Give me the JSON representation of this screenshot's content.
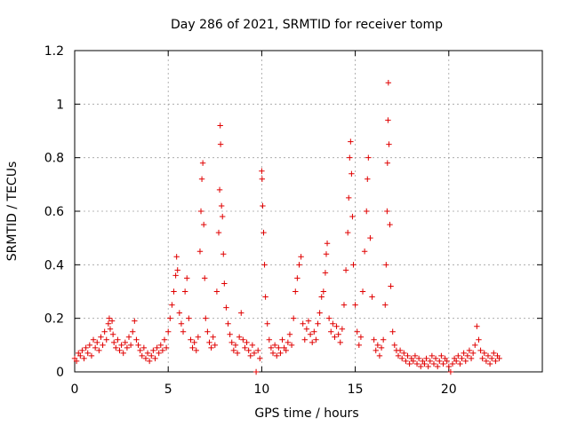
{
  "chart_data": {
    "type": "scatter",
    "title": "Day 286 of 2021, SRMTID for receiver tomp",
    "xlabel": "GPS time / hours",
    "ylabel": "SRMTID / TECUs",
    "xlim": [
      0,
      25
    ],
    "ylim": [
      0,
      1.2
    ],
    "xticks": [
      0,
      5,
      10,
      15,
      20
    ],
    "xtick_labels": [
      "0",
      "5",
      "10",
      "15",
      "20"
    ],
    "yticks": [
      0,
      0.2,
      0.4,
      0.6,
      0.8,
      1.0,
      1.2
    ],
    "ytick_labels": [
      "0",
      "0.2",
      "0.4",
      "0.6",
      "0.8",
      "1",
      "1.2"
    ],
    "grid": true,
    "marker": "plus",
    "color": "#e00000",
    "series": [
      {
        "name": "SRMTID",
        "points": [
          [
            0.0,
            0.05
          ],
          [
            0.1,
            0.04
          ],
          [
            0.2,
            0.07
          ],
          [
            0.3,
            0.06
          ],
          [
            0.4,
            0.08
          ],
          [
            0.5,
            0.05
          ],
          [
            0.6,
            0.09
          ],
          [
            0.7,
            0.07
          ],
          [
            0.8,
            0.1
          ],
          [
            0.9,
            0.06
          ],
          [
            1.0,
            0.12
          ],
          [
            1.1,
            0.09
          ],
          [
            1.2,
            0.11
          ],
          [
            1.3,
            0.08
          ],
          [
            1.4,
            0.13
          ],
          [
            1.5,
            0.1
          ],
          [
            1.6,
            0.15
          ],
          [
            1.7,
            0.12
          ],
          [
            1.8,
            0.18
          ],
          [
            1.85,
            0.2
          ],
          [
            1.9,
            0.16
          ],
          [
            2.0,
            0.19
          ],
          [
            2.05,
            0.14
          ],
          [
            2.1,
            0.11
          ],
          [
            2.2,
            0.09
          ],
          [
            2.3,
            0.12
          ],
          [
            2.4,
            0.08
          ],
          [
            2.5,
            0.1
          ],
          [
            2.6,
            0.07
          ],
          [
            2.7,
            0.11
          ],
          [
            2.8,
            0.09
          ],
          [
            2.9,
            0.13
          ],
          [
            3.0,
            0.1
          ],
          [
            3.1,
            0.15
          ],
          [
            3.2,
            0.19
          ],
          [
            3.3,
            0.12
          ],
          [
            3.4,
            0.1
          ],
          [
            3.5,
            0.08
          ],
          [
            3.6,
            0.06
          ],
          [
            3.7,
            0.09
          ],
          [
            3.8,
            0.05
          ],
          [
            3.9,
            0.07
          ],
          [
            4.0,
            0.04
          ],
          [
            4.1,
            0.06
          ],
          [
            4.2,
            0.08
          ],
          [
            4.3,
            0.05
          ],
          [
            4.4,
            0.09
          ],
          [
            4.5,
            0.07
          ],
          [
            4.6,
            0.1
          ],
          [
            4.7,
            0.08
          ],
          [
            4.8,
            0.12
          ],
          [
            4.9,
            0.09
          ],
          [
            5.0,
            0.15
          ],
          [
            5.1,
            0.2
          ],
          [
            5.2,
            0.25
          ],
          [
            5.3,
            0.3
          ],
          [
            5.4,
            0.36
          ],
          [
            5.45,
            0.43
          ],
          [
            5.5,
            0.38
          ],
          [
            5.6,
            0.22
          ],
          [
            5.7,
            0.18
          ],
          [
            5.8,
            0.15
          ],
          [
            5.9,
            0.3
          ],
          [
            6.0,
            0.35
          ],
          [
            6.1,
            0.2
          ],
          [
            6.2,
            0.12
          ],
          [
            6.3,
            0.09
          ],
          [
            6.4,
            0.11
          ],
          [
            6.5,
            0.08
          ],
          [
            6.6,
            0.13
          ],
          [
            6.7,
            0.45
          ],
          [
            6.75,
            0.6
          ],
          [
            6.8,
            0.72
          ],
          [
            6.85,
            0.78
          ],
          [
            6.9,
            0.55
          ],
          [
            6.95,
            0.35
          ],
          [
            7.0,
            0.2
          ],
          [
            7.1,
            0.15
          ],
          [
            7.2,
            0.11
          ],
          [
            7.3,
            0.09
          ],
          [
            7.4,
            0.13
          ],
          [
            7.5,
            0.1
          ],
          [
            7.6,
            0.3
          ],
          [
            7.7,
            0.52
          ],
          [
            7.75,
            0.68
          ],
          [
            7.78,
            0.92
          ],
          [
            7.8,
            0.85
          ],
          [
            7.85,
            0.62
          ],
          [
            7.9,
            0.58
          ],
          [
            7.95,
            0.44
          ],
          [
            8.0,
            0.33
          ],
          [
            8.1,
            0.24
          ],
          [
            8.2,
            0.18
          ],
          [
            8.3,
            0.14
          ],
          [
            8.4,
            0.11
          ],
          [
            8.5,
            0.08
          ],
          [
            8.6,
            0.1
          ],
          [
            8.7,
            0.07
          ],
          [
            8.8,
            0.13
          ],
          [
            8.9,
            0.22
          ],
          [
            9.0,
            0.12
          ],
          [
            9.1,
            0.09
          ],
          [
            9.2,
            0.11
          ],
          [
            9.3,
            0.08
          ],
          [
            9.4,
            0.06
          ],
          [
            9.5,
            0.1
          ],
          [
            9.6,
            0.07
          ],
          [
            9.7,
            0.0
          ],
          [
            9.8,
            0.08
          ],
          [
            9.9,
            0.05
          ],
          [
            10.0,
            0.75
          ],
          [
            10.02,
            0.72
          ],
          [
            10.05,
            0.62
          ],
          [
            10.1,
            0.52
          ],
          [
            10.15,
            0.4
          ],
          [
            10.2,
            0.28
          ],
          [
            10.3,
            0.18
          ],
          [
            10.4,
            0.12
          ],
          [
            10.5,
            0.09
          ],
          [
            10.6,
            0.07
          ],
          [
            10.7,
            0.1
          ],
          [
            10.8,
            0.06
          ],
          [
            10.9,
            0.09
          ],
          [
            11.0,
            0.07
          ],
          [
            11.1,
            0.12
          ],
          [
            11.2,
            0.09
          ],
          [
            11.3,
            0.08
          ],
          [
            11.4,
            0.11
          ],
          [
            11.5,
            0.14
          ],
          [
            11.6,
            0.1
          ],
          [
            11.7,
            0.2
          ],
          [
            11.8,
            0.3
          ],
          [
            11.9,
            0.35
          ],
          [
            12.0,
            0.4
          ],
          [
            12.1,
            0.43
          ],
          [
            12.2,
            0.18
          ],
          [
            12.3,
            0.12
          ],
          [
            12.4,
            0.16
          ],
          [
            12.5,
            0.19
          ],
          [
            12.6,
            0.14
          ],
          [
            12.7,
            0.11
          ],
          [
            12.8,
            0.15
          ],
          [
            12.9,
            0.12
          ],
          [
            13.0,
            0.18
          ],
          [
            13.1,
            0.22
          ],
          [
            13.2,
            0.28
          ],
          [
            13.3,
            0.3
          ],
          [
            13.4,
            0.37
          ],
          [
            13.45,
            0.44
          ],
          [
            13.5,
            0.48
          ],
          [
            13.6,
            0.2
          ],
          [
            13.7,
            0.15
          ],
          [
            13.8,
            0.18
          ],
          [
            13.9,
            0.13
          ],
          [
            14.0,
            0.17
          ],
          [
            14.1,
            0.14
          ],
          [
            14.2,
            0.11
          ],
          [
            14.3,
            0.16
          ],
          [
            14.4,
            0.25
          ],
          [
            14.5,
            0.38
          ],
          [
            14.6,
            0.52
          ],
          [
            14.65,
            0.65
          ],
          [
            14.7,
            0.8
          ],
          [
            14.75,
            0.86
          ],
          [
            14.8,
            0.74
          ],
          [
            14.85,
            0.58
          ],
          [
            14.9,
            0.4
          ],
          [
            15.0,
            0.25
          ],
          [
            15.1,
            0.15
          ],
          [
            15.2,
            0.1
          ],
          [
            15.3,
            0.13
          ],
          [
            15.4,
            0.3
          ],
          [
            15.5,
            0.45
          ],
          [
            15.6,
            0.6
          ],
          [
            15.65,
            0.72
          ],
          [
            15.7,
            0.8
          ],
          [
            15.8,
            0.5
          ],
          [
            15.9,
            0.28
          ],
          [
            16.0,
            0.12
          ],
          [
            16.1,
            0.08
          ],
          [
            16.2,
            0.1
          ],
          [
            16.3,
            0.06
          ],
          [
            16.4,
            0.09
          ],
          [
            16.5,
            0.12
          ],
          [
            16.6,
            0.25
          ],
          [
            16.65,
            0.4
          ],
          [
            16.7,
            0.6
          ],
          [
            16.72,
            0.78
          ],
          [
            16.75,
            0.94
          ],
          [
            16.77,
            1.08
          ],
          [
            16.8,
            0.85
          ],
          [
            16.85,
            0.55
          ],
          [
            16.9,
            0.32
          ],
          [
            17.0,
            0.15
          ],
          [
            17.1,
            0.1
          ],
          [
            17.2,
            0.08
          ],
          [
            17.3,
            0.06
          ],
          [
            17.4,
            0.08
          ],
          [
            17.5,
            0.05
          ],
          [
            17.6,
            0.07
          ],
          [
            17.7,
            0.04
          ],
          [
            17.8,
            0.06
          ],
          [
            17.9,
            0.03
          ],
          [
            18.0,
            0.05
          ],
          [
            18.1,
            0.04
          ],
          [
            18.2,
            0.06
          ],
          [
            18.3,
            0.03
          ],
          [
            18.4,
            0.05
          ],
          [
            18.5,
            0.02
          ],
          [
            18.6,
            0.04
          ],
          [
            18.7,
            0.03
          ],
          [
            18.8,
            0.05
          ],
          [
            18.9,
            0.02
          ],
          [
            19.0,
            0.04
          ],
          [
            19.1,
            0.06
          ],
          [
            19.2,
            0.03
          ],
          [
            19.3,
            0.05
          ],
          [
            19.4,
            0.02
          ],
          [
            19.5,
            0.04
          ],
          [
            19.6,
            0.06
          ],
          [
            19.7,
            0.03
          ],
          [
            19.8,
            0.05
          ],
          [
            19.9,
            0.04
          ],
          [
            20.0,
            0.02
          ],
          [
            20.1,
            0.0
          ],
          [
            20.2,
            0.03
          ],
          [
            20.3,
            0.05
          ],
          [
            20.4,
            0.04
          ],
          [
            20.5,
            0.06
          ],
          [
            20.6,
            0.03
          ],
          [
            20.7,
            0.05
          ],
          [
            20.8,
            0.07
          ],
          [
            20.9,
            0.04
          ],
          [
            21.0,
            0.06
          ],
          [
            21.1,
            0.08
          ],
          [
            21.2,
            0.05
          ],
          [
            21.3,
            0.07
          ],
          [
            21.4,
            0.1
          ],
          [
            21.5,
            0.17
          ],
          [
            21.6,
            0.12
          ],
          [
            21.7,
            0.08
          ],
          [
            21.8,
            0.05
          ],
          [
            21.9,
            0.07
          ],
          [
            22.0,
            0.04
          ],
          [
            22.1,
            0.06
          ],
          [
            22.2,
            0.03
          ],
          [
            22.3,
            0.05
          ],
          [
            22.4,
            0.07
          ],
          [
            22.5,
            0.04
          ],
          [
            22.6,
            0.06
          ],
          [
            22.7,
            0.05
          ]
        ]
      }
    ]
  }
}
